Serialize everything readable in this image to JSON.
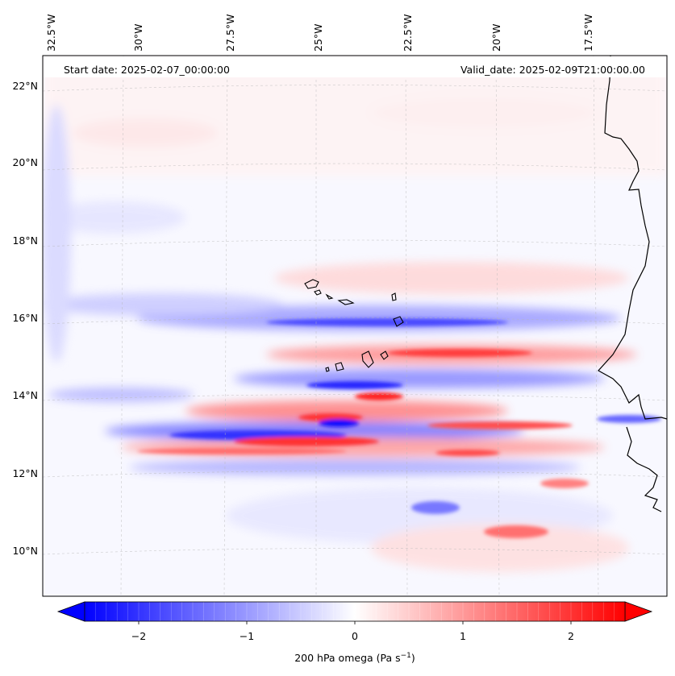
{
  "map": {
    "title_left": "Start date: 2025-02-07_00:00:00",
    "title_right": "Valid_date: 2025-02-09T21:00:00.00",
    "lon_labels": [
      "32.5°W",
      "30°W",
      "27.5°W",
      "25°W",
      "22.5°W",
      "20°W",
      "17.5°W"
    ],
    "lon_values": [
      -32.5,
      -30,
      -27.5,
      -25,
      -22.5,
      -20,
      -17.5
    ],
    "lat_labels": [
      "22°N",
      "20°N",
      "18°N",
      "16°N",
      "14°N",
      "12°N",
      "10°N"
    ],
    "lat_values": [
      22,
      20,
      18,
      16,
      14,
      12,
      10
    ],
    "extent": {
      "lon_min": -33.3,
      "lon_max": -15.9,
      "lat_min": 8.8,
      "lat_max": 22.8
    },
    "islands": [
      "Santo Antão",
      "São Vicente",
      "São Nicolau",
      "Sal",
      "Boa Vista",
      "Maio",
      "Santiago",
      "Fogo",
      "Brava"
    ],
    "coastline": "West Africa (Mauritania, Senegal, Gambia, Guinea-Bissau)"
  },
  "colorbar": {
    "label_prefix": "200 hPa omega (Pa s",
    "label_exponent": "−1",
    "label_suffix": ")",
    "tick_labels": [
      "−2",
      "−1",
      "0",
      "1",
      "2"
    ],
    "tick_values": [
      -2,
      -1,
      0,
      1,
      2
    ],
    "vmin": -2.5,
    "vmax": 2.5,
    "colormap": "bwr",
    "color_min": "#0000ff",
    "color_mid": "#ffffff",
    "color_max": "#ff0000",
    "extend": "both"
  }
}
